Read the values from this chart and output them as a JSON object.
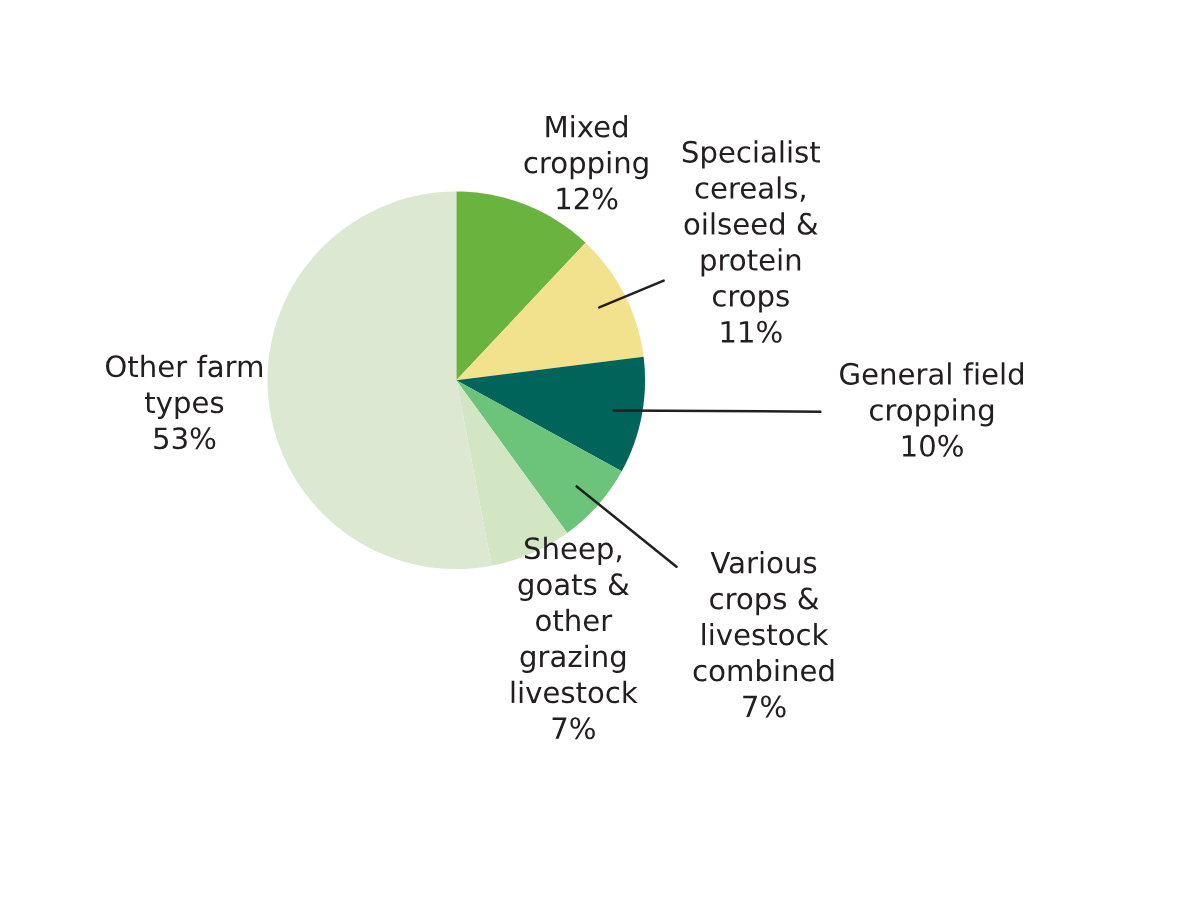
{
  "chart_data": {
    "type": "pie",
    "categories": [
      "Mixed\ncropping",
      "Specialist\ncereals,\noilseed &\nprotein\ncrops",
      "General field\ncropping",
      "Various\ncrops &\nlivestock\ncombined",
      "Sheep,\ngoats &\nother\ngrazing\nlivestock",
      "Other farm\ntypes"
    ],
    "values": [
      12,
      11,
      10,
      7,
      7,
      53
    ],
    "colors": [
      "#6bb33f",
      "#f2e28e",
      "#00645a",
      "#6cc37a",
      "#d3e6c4",
      "#dce8d2"
    ],
    "value_labels": [
      "12%",
      "11%",
      "10%",
      "7%",
      "7%",
      "53%"
    ]
  }
}
